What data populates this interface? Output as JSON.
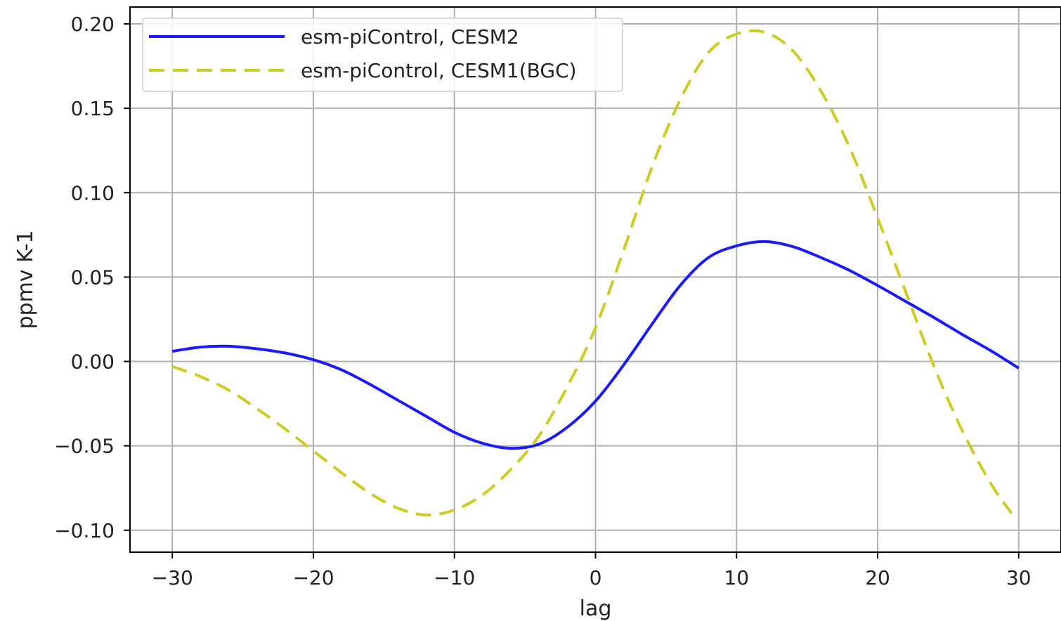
{
  "chart_data": {
    "type": "line",
    "xlabel": "lag",
    "ylabel": "ppmv K-1",
    "xlim": [
      -33,
      33
    ],
    "ylim": [
      -0.113,
      0.21
    ],
    "xticks": [
      -30,
      -20,
      -10,
      0,
      10,
      20,
      30
    ],
    "xtick_labels": [
      "−30",
      "−20",
      "−10",
      "0",
      "10",
      "20",
      "30"
    ],
    "yticks": [
      -0.1,
      -0.05,
      0.0,
      0.05,
      0.1,
      0.15,
      0.2
    ],
    "ytick_labels": [
      "−0.10",
      "−0.05",
      "0.00",
      "0.05",
      "0.10",
      "0.15",
      "0.20"
    ],
    "grid": true,
    "legend_position": "top-left",
    "series": [
      {
        "name": "esm-piControl, CESM2",
        "color": "#1a1aff",
        "style": "solid",
        "x": [
          -30,
          -28,
          -26,
          -24,
          -22,
          -20,
          -18,
          -16,
          -14,
          -12,
          -10,
          -8,
          -6,
          -4,
          -2,
          0,
          2,
          4,
          6,
          8,
          10,
          12,
          14,
          16,
          18,
          20,
          22,
          24,
          26,
          28,
          30
        ],
        "y": [
          0.006,
          0.0085,
          0.009,
          0.0075,
          0.005,
          0.001,
          -0.005,
          -0.0135,
          -0.023,
          -0.0325,
          -0.042,
          -0.0485,
          -0.0515,
          -0.049,
          -0.039,
          -0.0235,
          -0.002,
          0.022,
          0.045,
          0.0615,
          0.0685,
          0.071,
          0.068,
          0.0615,
          0.054,
          0.045,
          0.0355,
          0.026,
          0.016,
          0.0065,
          -0.004
        ]
      },
      {
        "name": "esm-piControl, CESM1(BGC)",
        "color": "#cccc22",
        "style": "dashed",
        "x": [
          -30,
          -28,
          -26,
          -24,
          -22,
          -20,
          -18,
          -16,
          -14,
          -12,
          -10,
          -8,
          -6,
          -4,
          -2,
          0,
          2,
          4,
          6,
          8,
          10,
          12,
          14,
          16,
          18,
          20,
          22,
          24,
          26,
          28,
          29.5
        ],
        "y": [
          -0.003,
          -0.009,
          -0.017,
          -0.028,
          -0.04,
          -0.053,
          -0.066,
          -0.078,
          -0.087,
          -0.091,
          -0.088,
          -0.079,
          -0.064,
          -0.044,
          -0.015,
          0.02,
          0.066,
          0.115,
          0.155,
          0.183,
          0.194,
          0.195,
          0.184,
          0.16,
          0.127,
          0.085,
          0.041,
          -0.003,
          -0.041,
          -0.072,
          -0.09
        ]
      }
    ]
  }
}
